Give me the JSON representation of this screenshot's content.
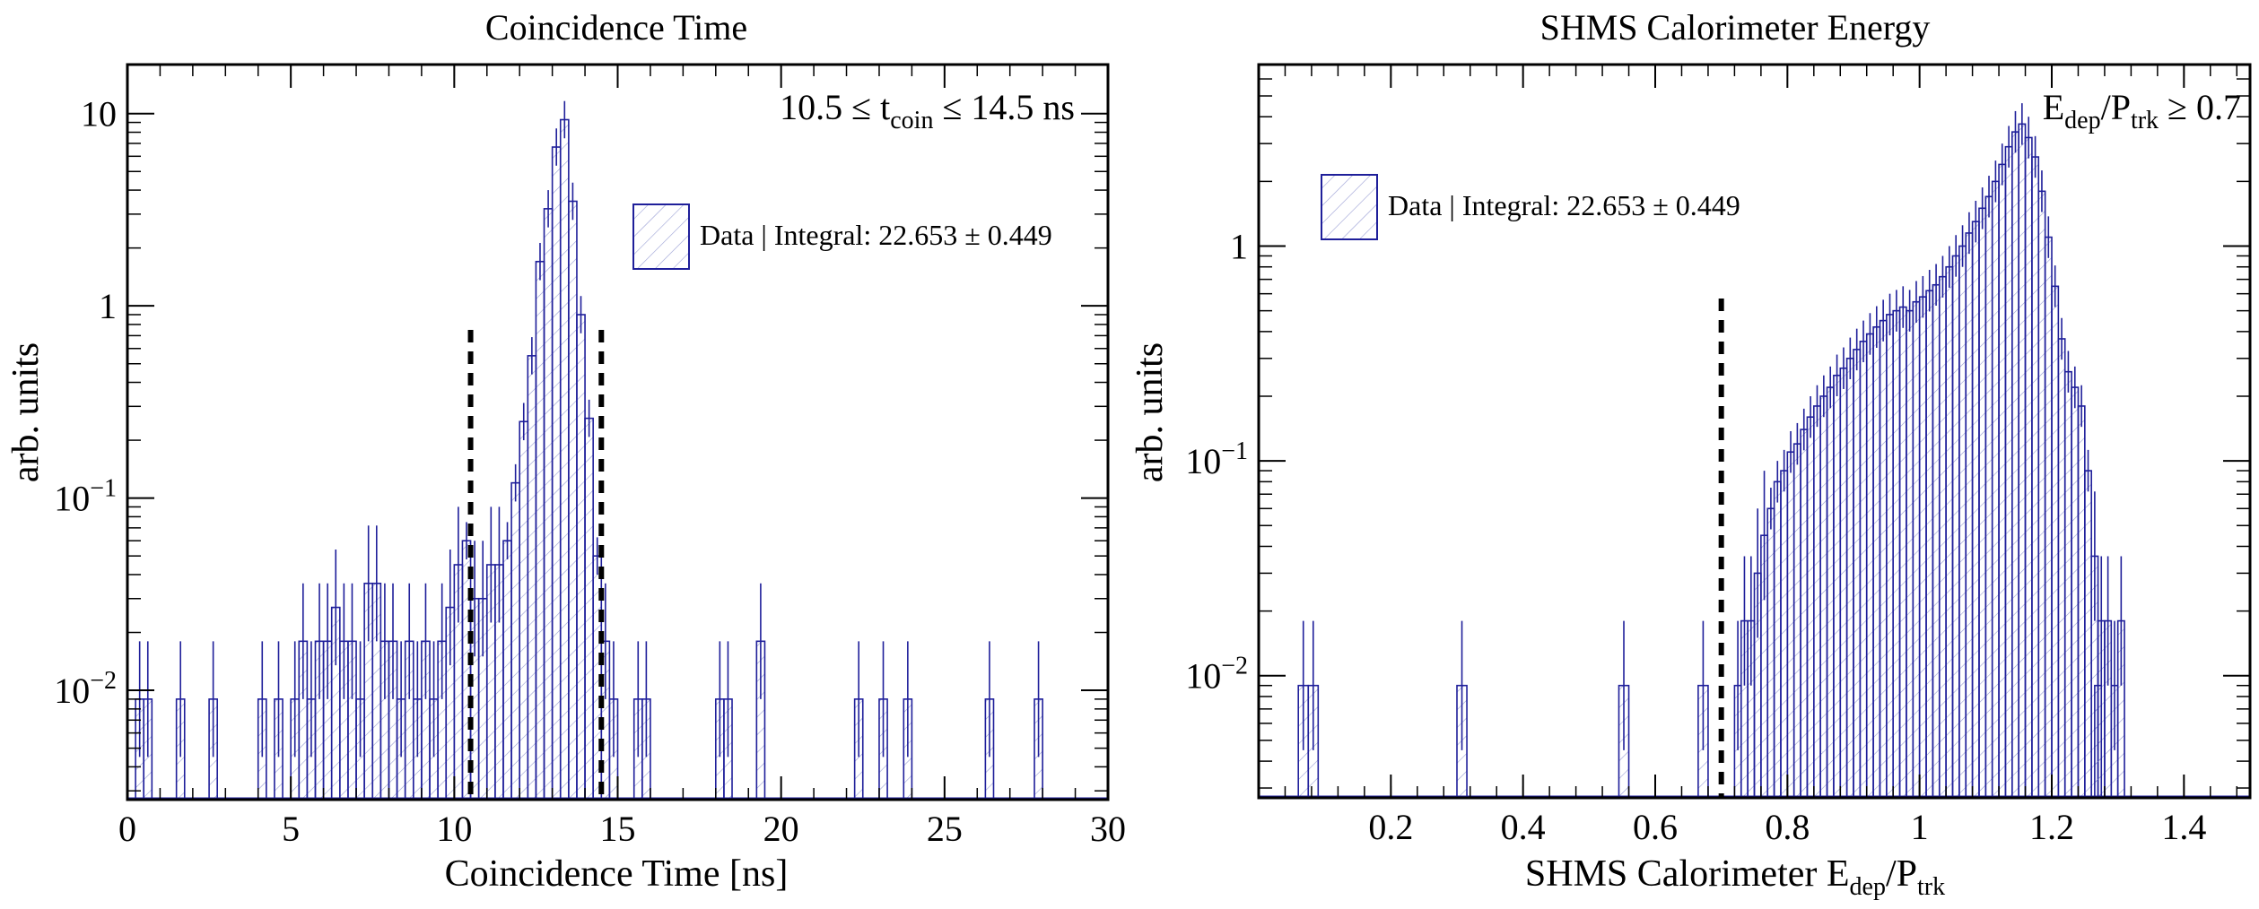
{
  "chart_data": [
    {
      "type": "histogram",
      "title": "Coincidence Time",
      "xlabel": "Coincidence Time [ns]",
      "ylabel": "arb.  units",
      "xlim": [
        0,
        30
      ],
      "ylim": [
        0.0027,
        18
      ],
      "yscale": "log",
      "x_ticks": [
        0,
        5,
        10,
        15,
        20,
        25,
        30
      ],
      "y_ticks": [
        {
          "value": 0.01,
          "label": "10",
          "exp": "−2"
        },
        {
          "value": 0.1,
          "label": "10",
          "exp": "−1"
        },
        {
          "value": 1,
          "label": "1",
          "exp": ""
        },
        {
          "value": 10,
          "label": "10",
          "exp": ""
        }
      ],
      "cut_lines": [
        10.5,
        14.5
      ],
      "cut_text": "10.5 ≤ t",
      "cut_text_sub": "coin",
      "cut_text_tail": " ≤ 14.5 ns",
      "legend": "Data | Integral: 22.653 ± 0.449",
      "legend_position": "top-right",
      "bin_width": 0.5,
      "series": [
        {
          "name": "Data",
          "color": "#1f1f9a",
          "x_start": 0,
          "values": [
            0.009,
            0.009,
            0,
            0.009,
            0.009,
            0.009,
            0.0,
            0.009,
            0,
            0.009,
            0.009,
            0.018,
            0.009,
            0.009,
            0.018,
            0.009,
            0.018,
            0.027,
            0.018,
            0.036,
            0.018,
            0.018,
            0.045,
            0.009,
            0.018,
            0.018,
            0.045,
            0.036,
            0.018,
            0.009,
            0.009,
            0.018,
            0.018,
            0.036,
            0.027,
            0.045,
            0.018,
            0.045,
            0.045,
            0.08,
            0.06,
            0.045,
            0.06,
            0.1,
            0.045,
            0.03,
            0.018,
            0.009,
            0.009,
            0.0,
            0.009,
            0.009,
            0.009,
            0.0,
            0.0,
            0.0,
            0.0,
            0.0,
            0.0,
            0.0
          ],
          "peak_bins": [
            {
              "x": 10.5,
              "w": 0.25,
              "v": 0.03
            },
            {
              "x": 10.75,
              "w": 0.25,
              "v": 0.03
            },
            {
              "x": 11.0,
              "w": 0.25,
              "v": 0.045
            },
            {
              "x": 11.25,
              "w": 0.25,
              "v": 0.045
            },
            {
              "x": 11.5,
              "w": 0.25,
              "v": 0.06
            },
            {
              "x": 11.75,
              "w": 0.25,
              "v": 0.12
            },
            {
              "x": 12.0,
              "w": 0.25,
              "v": 0.25
            },
            {
              "x": 12.25,
              "w": 0.25,
              "v": 0.55
            },
            {
              "x": 12.5,
              "w": 0.25,
              "v": 1.7
            },
            {
              "x": 12.75,
              "w": 0.25,
              "v": 3.2
            },
            {
              "x": 13.0,
              "w": 0.25,
              "v": 6.7
            },
            {
              "x": 13.25,
              "w": 0.25,
              "v": 9.3
            },
            {
              "x": 13.5,
              "w": 0.25,
              "v": 3.5
            },
            {
              "x": 13.75,
              "w": 0.25,
              "v": 0.9
            },
            {
              "x": 14.0,
              "w": 0.25,
              "v": 0.26
            },
            {
              "x": 14.25,
              "w": 0.25,
              "v": 0.05
            }
          ],
          "sparse_bins": [
            {
              "x": 0.25,
              "v": 0.009
            },
            {
              "x": 0.5,
              "v": 0.009
            },
            {
              "x": 1.5,
              "v": 0.009
            },
            {
              "x": 2.5,
              "v": 0.009
            },
            {
              "x": 4.0,
              "v": 0.009
            },
            {
              "x": 4.5,
              "v": 0.009
            },
            {
              "x": 5.0,
              "v": 0.009
            },
            {
              "x": 5.25,
              "v": 0.018
            },
            {
              "x": 5.5,
              "v": 0.009
            },
            {
              "x": 5.75,
              "v": 0.018
            },
            {
              "x": 6.0,
              "v": 0.018
            },
            {
              "x": 6.25,
              "v": 0.027
            },
            {
              "x": 6.5,
              "v": 0.018
            },
            {
              "x": 6.75,
              "v": 0.018
            },
            {
              "x": 7.0,
              "v": 0.009
            },
            {
              "x": 7.25,
              "v": 0.036
            },
            {
              "x": 7.5,
              "v": 0.036
            },
            {
              "x": 7.75,
              "v": 0.018
            },
            {
              "x": 8.0,
              "v": 0.018
            },
            {
              "x": 8.25,
              "v": 0.009
            },
            {
              "x": 8.5,
              "v": 0.018
            },
            {
              "x": 8.75,
              "v": 0.009
            },
            {
              "x": 9.0,
              "v": 0.018
            },
            {
              "x": 9.25,
              "v": 0.009
            },
            {
              "x": 9.5,
              "v": 0.018
            },
            {
              "x": 9.75,
              "v": 0.027
            },
            {
              "x": 10.0,
              "v": 0.045
            },
            {
              "x": 10.25,
              "v": 0.06
            },
            {
              "x": 14.5,
              "v": 0.018
            },
            {
              "x": 14.75,
              "v": 0.009
            },
            {
              "x": 15.5,
              "v": 0.009
            },
            {
              "x": 15.75,
              "v": 0.009
            },
            {
              "x": 18.0,
              "v": 0.009
            },
            {
              "x": 18.25,
              "v": 0.009
            },
            {
              "x": 19.25,
              "v": 0.018
            },
            {
              "x": 22.25,
              "v": 0.009
            },
            {
              "x": 23.0,
              "v": 0.009
            },
            {
              "x": 23.75,
              "v": 0.009
            },
            {
              "x": 26.25,
              "v": 0.009
            },
            {
              "x": 27.75,
              "v": 0.009
            }
          ]
        }
      ]
    },
    {
      "type": "histogram",
      "title": "SHMS Calorimeter Energy",
      "xlabel": "SHMS Calorimeter E",
      "xlabel_sub1": "dep",
      "xlabel_mid": "/P",
      "xlabel_sub2": "trk",
      "ylabel": "arb.  units",
      "xlim": [
        0,
        1.5
      ],
      "ylim": [
        0.0027,
        7
      ],
      "yscale": "log",
      "x_ticks": [
        0.2,
        0.4,
        0.6,
        0.8,
        1,
        1.2,
        1.4
      ],
      "y_ticks": [
        {
          "value": 0.01,
          "label": "10",
          "exp": "−2"
        },
        {
          "value": 0.1,
          "label": "10",
          "exp": "−1"
        },
        {
          "value": 1,
          "label": "1",
          "exp": ""
        }
      ],
      "cut_lines": [
        0.7
      ],
      "cut_text": "E",
      "cut_text_sub1": "dep",
      "cut_text_mid": "/P",
      "cut_text_sub2": "trk",
      "cut_text_tail": " ≥ 0.7",
      "legend": "Data | Integral: 22.653 ± 0.449",
      "legend_position": "top-left",
      "series": [
        {
          "name": "Data",
          "color": "#1f1f9a",
          "sparse_bins": [
            {
              "x": 0.06,
              "v": 0.009
            },
            {
              "x": 0.075,
              "v": 0.009
            },
            {
              "x": 0.3,
              "v": 0.009
            },
            {
              "x": 0.545,
              "v": 0.009
            },
            {
              "x": 0.665,
              "v": 0.009
            }
          ],
          "bin_width": 0.01,
          "main_x_start": 0.72,
          "main_values": [
            0.009,
            0.018,
            0.018,
            0.03,
            0.045,
            0.06,
            0.08,
            0.09,
            0.11,
            0.12,
            0.14,
            0.16,
            0.18,
            0.2,
            0.22,
            0.25,
            0.27,
            0.3,
            0.33,
            0.36,
            0.39,
            0.42,
            0.45,
            0.48,
            0.5,
            0.52,
            0.5,
            0.55,
            0.58,
            0.62,
            0.66,
            0.72,
            0.8,
            0.9,
            1.0,
            1.15,
            1.3,
            1.5,
            1.7,
            2.0,
            2.4,
            2.9,
            3.4,
            3.7,
            3.2,
            2.6,
            1.8,
            1.1,
            0.65,
            0.37,
            0.26,
            0.22,
            0.18,
            0.09,
            0.036,
            0.018,
            0.018,
            0.009,
            0.018
          ],
          "extra_bins": [
            {
              "x": 1.265,
              "v": 0.009
            }
          ]
        }
      ]
    }
  ]
}
